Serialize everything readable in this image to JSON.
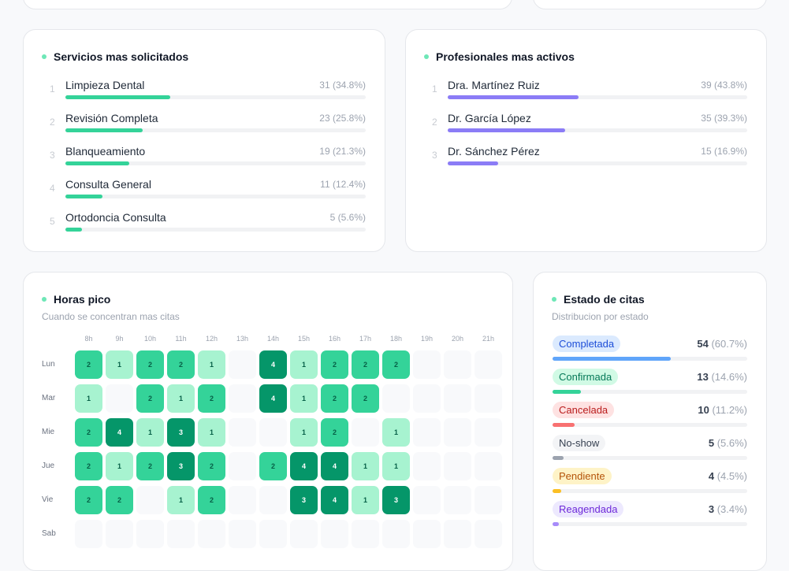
{
  "services": {
    "title": "Servicios mas solicitados",
    "items": [
      {
        "rank": "1",
        "name": "Limpieza Dental",
        "count": "31",
        "pct": "(34.8%)",
        "value": 34.8
      },
      {
        "rank": "2",
        "name": "Revisión Completa",
        "count": "23",
        "pct": "(25.8%)",
        "value": 25.8
      },
      {
        "rank": "3",
        "name": "Blanqueamiento",
        "count": "19",
        "pct": "(21.3%)",
        "value": 21.3
      },
      {
        "rank": "4",
        "name": "Consulta General",
        "count": "11",
        "pct": "(12.4%)",
        "value": 12.4
      },
      {
        "rank": "5",
        "name": "Ortodoncia Consulta",
        "count": "5",
        "pct": "(5.6%)",
        "value": 5.6
      }
    ]
  },
  "professionals": {
    "title": "Profesionales mas activos",
    "items": [
      {
        "rank": "1",
        "name": "Dra. Martínez Ruiz",
        "count": "39",
        "pct": "(43.8%)",
        "value": 43.8
      },
      {
        "rank": "2",
        "name": "Dr. García López",
        "count": "35",
        "pct": "(39.3%)",
        "value": 39.3
      },
      {
        "rank": "3",
        "name": "Dr. Sánchez Pérez",
        "count": "15",
        "pct": "(16.9%)",
        "value": 16.9
      }
    ]
  },
  "heatmap": {
    "title": "Horas pico",
    "subtitle": "Cuando se concentran mas citas",
    "hours": [
      "8h",
      "9h",
      "10h",
      "11h",
      "12h",
      "13h",
      "14h",
      "15h",
      "16h",
      "17h",
      "18h",
      "19h",
      "20h",
      "21h"
    ],
    "days": [
      "Lun",
      "Mar",
      "Mie",
      "Jue",
      "Vie",
      "Sab"
    ],
    "values": [
      [
        2,
        1,
        2,
        2,
        1,
        0,
        4,
        1,
        2,
        2,
        2,
        0,
        0,
        0
      ],
      [
        1,
        0,
        2,
        1,
        2,
        0,
        4,
        1,
        2,
        2,
        0,
        0,
        0,
        0
      ],
      [
        2,
        4,
        1,
        3,
        1,
        0,
        0,
        1,
        2,
        0,
        1,
        0,
        0,
        0
      ],
      [
        2,
        1,
        2,
        3,
        2,
        0,
        2,
        4,
        4,
        1,
        1,
        0,
        0,
        0
      ],
      [
        2,
        2,
        0,
        1,
        2,
        0,
        0,
        3,
        4,
        1,
        3,
        0,
        0,
        0
      ],
      [
        0,
        0,
        0,
        0,
        0,
        0,
        0,
        0,
        0,
        0,
        0,
        0,
        0,
        0
      ]
    ]
  },
  "status": {
    "title": "Estado de citas",
    "subtitle": "Distribucion por estado",
    "items": [
      {
        "label": "Completada",
        "count": "54",
        "pct": "(60.7%)",
        "value": 60.7,
        "bg": "#dbeafe",
        "fg": "#1d4ed8",
        "bar": "#60a5fa"
      },
      {
        "label": "Confirmada",
        "count": "13",
        "pct": "(14.6%)",
        "value": 14.6,
        "bg": "#d1fae5",
        "fg": "#047857",
        "bar": "#34d399"
      },
      {
        "label": "Cancelada",
        "count": "10",
        "pct": "(11.2%)",
        "value": 11.2,
        "bg": "#fee2e2",
        "fg": "#b91c1c",
        "bar": "#f87171"
      },
      {
        "label": "No-show",
        "count": "5",
        "pct": "(5.6%)",
        "value": 5.6,
        "bg": "#f3f4f6",
        "fg": "#374151",
        "bar": "#9ca3af"
      },
      {
        "label": "Pendiente",
        "count": "4",
        "pct": "(4.5%)",
        "value": 4.5,
        "bg": "#fef3c7",
        "fg": "#b45309",
        "bar": "#fbbf24"
      },
      {
        "label": "Reagendada",
        "count": "3",
        "pct": "(3.4%)",
        "value": 3.4,
        "bg": "#ede9fe",
        "fg": "#6d28d9",
        "bar": "#a78bfa"
      }
    ]
  },
  "colors": {
    "service_bar": "#34d399",
    "pro_bar": "#8b7cf6"
  }
}
